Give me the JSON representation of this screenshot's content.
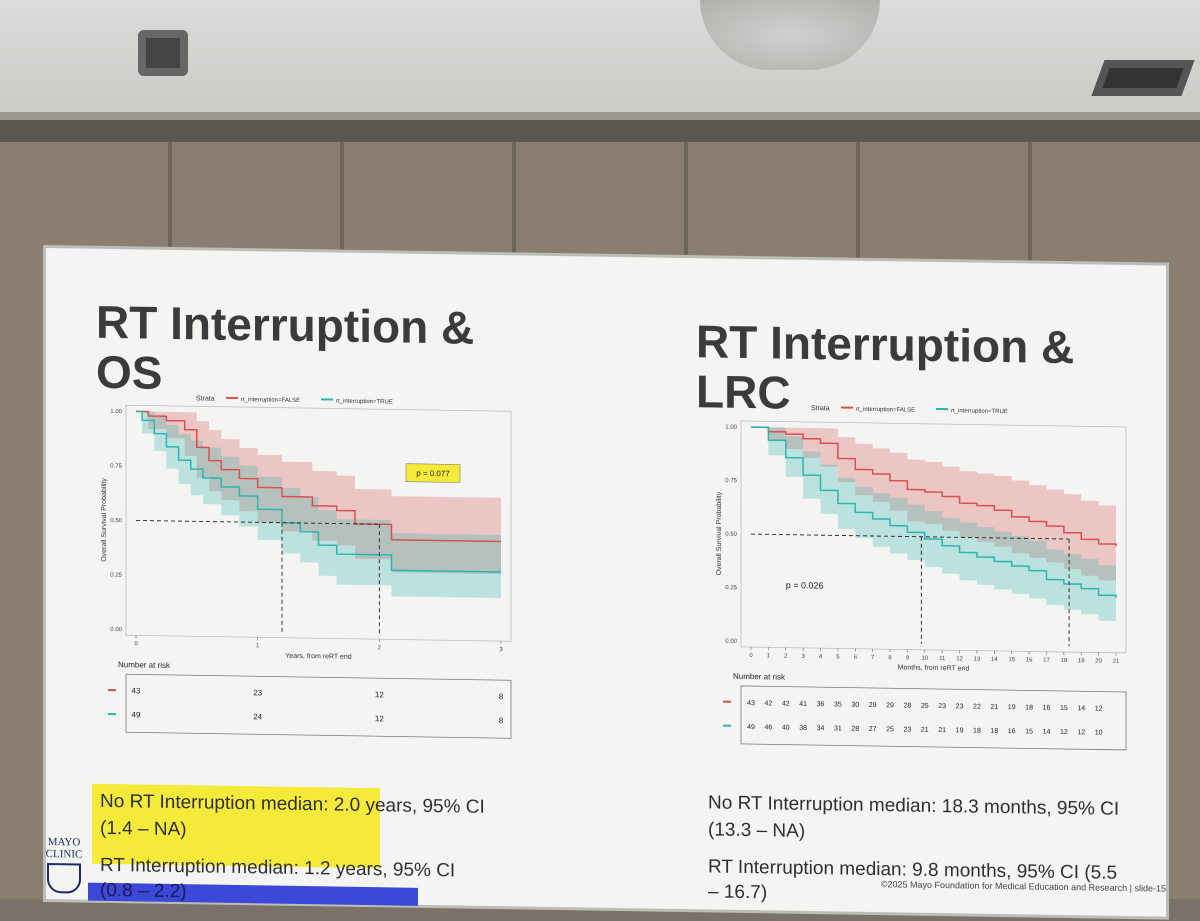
{
  "slide": {
    "title_left": "RT Interruption & OS",
    "title_right": "RT Interruption & LRC",
    "logo_text": "MAYO CLINIC",
    "copyright": "©2025 Mayo Foundation for Medical Education and Research | slide-15",
    "notes_left": [
      "No RT Interruption median: 2.0 years, 95% CI",
      "(1.4 – NA)",
      "RT Interruption median: 1.2 years, 95% CI",
      "(0.8 – 2.2)"
    ],
    "notes_right": [
      "No RT Interruption median: 18.3 months, 95% CI",
      "(13.3 – NA)",
      "RT Interruption median: 9.8 months, 95% CI (5.5",
      "– 16.7)"
    ],
    "colors": {
      "false_series": "#d9504e",
      "true_series": "#2ab5b0",
      "highlight": "#f5ea3a",
      "bluebar": "#3c48d8",
      "text": "#3b3b3b"
    }
  },
  "chart_data": [
    {
      "type": "line",
      "legend_title": "Strata",
      "legend_placement": "top",
      "xlabel": "Years, from reRT end",
      "ylabel": "Overall Survival Probability",
      "xlim": [
        0,
        3
      ],
      "ylim": [
        0,
        1
      ],
      "x_ticks": [
        "0",
        "1",
        "2",
        "3"
      ],
      "y_ticks": [
        "0.00",
        "0.25",
        "0.50",
        "0.75",
        "1.00"
      ],
      "annotation": "p = 0.077",
      "median_ref": {
        "y": 0.5,
        "x_marks": [
          1.2,
          2.0
        ]
      },
      "series": [
        {
          "name": "rt_interruption=FALSE",
          "x": [
            0,
            0.1,
            0.25,
            0.4,
            0.5,
            0.6,
            0.7,
            0.85,
            1.0,
            1.2,
            1.45,
            1.65,
            1.8,
            2.0,
            2.1,
            3.0
          ],
          "y": [
            1.0,
            0.98,
            0.96,
            0.92,
            0.84,
            0.78,
            0.74,
            0.7,
            0.66,
            0.62,
            0.58,
            0.56,
            0.5,
            0.5,
            0.43,
            0.43
          ],
          "lower": [
            1.0,
            0.92,
            0.88,
            0.8,
            0.7,
            0.64,
            0.6,
            0.55,
            0.5,
            0.46,
            0.42,
            0.4,
            0.34,
            0.34,
            0.28,
            0.28
          ],
          "upper": [
            1.0,
            1.0,
            1.0,
            1.0,
            0.96,
            0.92,
            0.88,
            0.84,
            0.81,
            0.78,
            0.74,
            0.72,
            0.66,
            0.66,
            0.63,
            0.63
          ]
        },
        {
          "name": "rt_interruption=TRUE",
          "x": [
            0,
            0.05,
            0.15,
            0.25,
            0.35,
            0.45,
            0.55,
            0.7,
            0.85,
            1.0,
            1.2,
            1.35,
            1.5,
            1.65,
            2.0,
            2.1,
            3.0
          ],
          "y": [
            1.0,
            0.96,
            0.9,
            0.84,
            0.78,
            0.74,
            0.7,
            0.66,
            0.62,
            0.56,
            0.5,
            0.46,
            0.4,
            0.36,
            0.36,
            0.29,
            0.29
          ],
          "lower": [
            1.0,
            0.9,
            0.82,
            0.74,
            0.67,
            0.62,
            0.58,
            0.53,
            0.48,
            0.42,
            0.36,
            0.32,
            0.26,
            0.22,
            0.22,
            0.17,
            0.17
          ],
          "upper": [
            1.0,
            1.0,
            0.98,
            0.94,
            0.9,
            0.87,
            0.84,
            0.8,
            0.76,
            0.71,
            0.66,
            0.62,
            0.56,
            0.52,
            0.52,
            0.46,
            0.46
          ]
        }
      ],
      "risk_table": {
        "title": "Number at risk",
        "times": [
          0,
          1,
          2,
          3
        ],
        "rows": [
          {
            "name": "rt_interruption=FALSE",
            "values": [
              "43",
              "23",
              "12",
              "8"
            ]
          },
          {
            "name": "rt_interruption=TRUE",
            "values": [
              "49",
              "24",
              "12",
              "8"
            ]
          }
        ]
      }
    },
    {
      "type": "line",
      "legend_title": "Strata",
      "legend_placement": "top",
      "xlabel": "Months, from reRT end",
      "ylabel": "Overall Survival Probability",
      "xlim": [
        0,
        21
      ],
      "ylim": [
        0,
        1
      ],
      "x_ticks": [
        "0",
        "1",
        "2",
        "3",
        "4",
        "5",
        "6",
        "7",
        "8",
        "9",
        "10",
        "11",
        "12",
        "13",
        "14",
        "15",
        "16",
        "17",
        "18",
        "19",
        "20",
        "21"
      ],
      "y_ticks": [
        "0.00",
        "0.25",
        "0.50",
        "0.75",
        "1.00"
      ],
      "annotation": "p = 0.026",
      "median_ref": {
        "y": 0.5,
        "x_marks": [
          9.8,
          18.3
        ]
      },
      "series": [
        {
          "name": "rt_interruption=FALSE",
          "x": [
            0,
            1,
            2,
            3,
            4,
            5,
            6,
            7,
            8,
            9,
            10,
            11,
            12,
            13,
            14,
            15,
            16,
            17,
            18,
            19,
            20,
            21
          ],
          "y": [
            1.0,
            0.98,
            0.97,
            0.95,
            0.93,
            0.86,
            0.81,
            0.79,
            0.76,
            0.72,
            0.71,
            0.69,
            0.66,
            0.65,
            0.63,
            0.6,
            0.58,
            0.56,
            0.53,
            0.5,
            0.48,
            0.47
          ],
          "lower": [
            1.0,
            0.94,
            0.9,
            0.86,
            0.82,
            0.75,
            0.69,
            0.66,
            0.62,
            0.57,
            0.56,
            0.53,
            0.5,
            0.48,
            0.46,
            0.43,
            0.41,
            0.39,
            0.36,
            0.33,
            0.31,
            0.3
          ],
          "upper": [
            1.0,
            1.0,
            1.0,
            1.0,
            1.0,
            0.96,
            0.93,
            0.91,
            0.89,
            0.86,
            0.85,
            0.83,
            0.81,
            0.8,
            0.79,
            0.77,
            0.75,
            0.73,
            0.71,
            0.68,
            0.66,
            0.65
          ]
        },
        {
          "name": "rt_interruption=TRUE",
          "x": [
            0,
            1,
            2,
            3,
            4,
            5,
            6,
            7,
            8,
            9,
            10,
            11,
            12,
            13,
            14,
            15,
            16,
            17,
            18,
            19,
            20,
            21
          ],
          "y": [
            1.0,
            0.94,
            0.86,
            0.78,
            0.71,
            0.65,
            0.61,
            0.58,
            0.55,
            0.52,
            0.49,
            0.46,
            0.43,
            0.41,
            0.39,
            0.37,
            0.35,
            0.31,
            0.29,
            0.27,
            0.24,
            0.23
          ],
          "lower": [
            1.0,
            0.87,
            0.77,
            0.67,
            0.6,
            0.53,
            0.49,
            0.45,
            0.42,
            0.39,
            0.36,
            0.33,
            0.3,
            0.28,
            0.26,
            0.24,
            0.22,
            0.19,
            0.17,
            0.15,
            0.12,
            0.11
          ],
          "upper": [
            1.0,
            1.0,
            0.96,
            0.89,
            0.83,
            0.77,
            0.73,
            0.7,
            0.68,
            0.65,
            0.62,
            0.59,
            0.57,
            0.55,
            0.53,
            0.51,
            0.49,
            0.45,
            0.43,
            0.41,
            0.38,
            0.37
          ]
        }
      ],
      "risk_table": {
        "title": "Number at risk",
        "times": [
          0,
          1,
          2,
          3,
          4,
          5,
          6,
          7,
          8,
          9,
          10,
          11,
          12,
          13,
          14,
          15,
          16,
          17,
          18,
          19,
          20
        ],
        "rows": [
          {
            "name": "rt_interruption=FALSE",
            "values": [
              "43",
              "42",
              "42",
              "41",
              "36",
              "35",
              "30",
              "29",
              "29",
              "28",
              "25",
              "23",
              "23",
              "22",
              "21",
              "19",
              "18",
              "16",
              "15",
              "14",
              "12"
            ]
          },
          {
            "name": "rt_interruption=TRUE",
            "values": [
              "49",
              "46",
              "40",
              "38",
              "34",
              "31",
              "28",
              "27",
              "25",
              "23",
              "21",
              "21",
              "19",
              "18",
              "18",
              "16",
              "15",
              "14",
              "12",
              "12",
              "10"
            ]
          }
        ]
      }
    }
  ]
}
